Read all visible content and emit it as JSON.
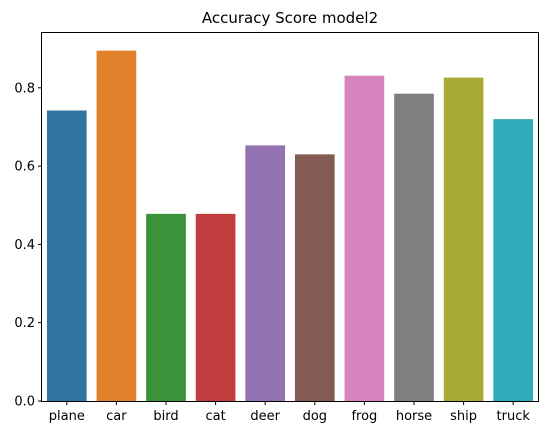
{
  "chart_data": {
    "type": "bar",
    "title": "Accuracy Score model2",
    "xlabel": "",
    "ylabel": "",
    "categories": [
      "plane",
      "car",
      "bird",
      "cat",
      "deer",
      "dog",
      "frog",
      "horse",
      "ship",
      "truck"
    ],
    "values": [
      0.742,
      0.895,
      0.478,
      0.478,
      0.653,
      0.63,
      0.831,
      0.785,
      0.826,
      0.72
    ],
    "colors": [
      "#3274a1",
      "#e1812c",
      "#3a923a",
      "#c03d3e",
      "#9372b2",
      "#845b53",
      "#d684bd",
      "#7f7f7f",
      "#a9aa35",
      "#2eaab8"
    ],
    "ylim": [
      0,
      0.94
    ],
    "yticks": [
      0.0,
      0.2,
      0.4,
      0.6,
      0.8
    ],
    "ytick_labels": [
      "0.0",
      "0.2",
      "0.4",
      "0.6",
      "0.8"
    ],
    "grid": false,
    "legend": "none"
  }
}
